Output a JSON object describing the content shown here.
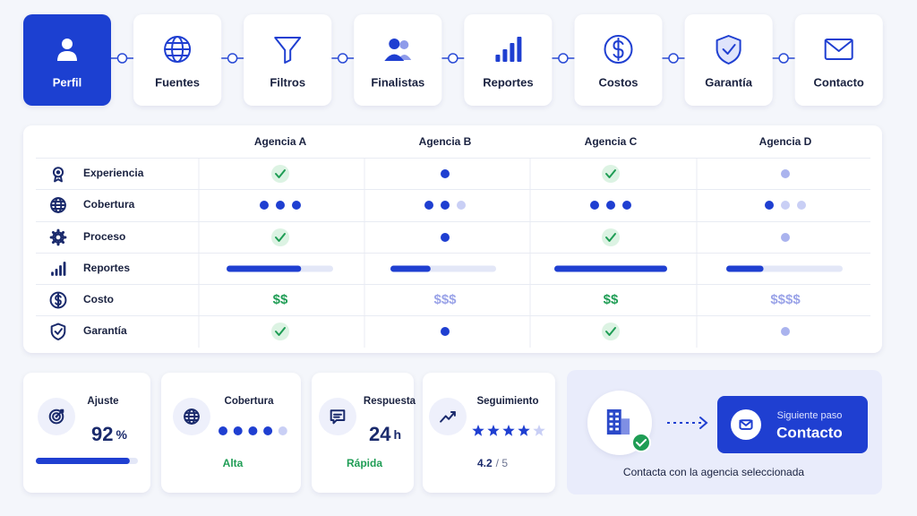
{
  "steps": {
    "active": 0,
    "items": [
      "Perfil",
      "Fuentes",
      "Filtros",
      "Finalistas",
      "Reportes",
      "Costos",
      "Garantía",
      "Contacto"
    ]
  },
  "table": {
    "columns": [
      "Agencia A",
      "Agencia B",
      "Agencia C",
      "Agencia D"
    ],
    "rows": [
      {
        "label": "Experiencia",
        "cells": [
          "check",
          "dot",
          "check",
          "dot-muted"
        ]
      },
      {
        "label": "Cobertura",
        "rating_max": 3,
        "cells": [
          3,
          2,
          3,
          1
        ]
      },
      {
        "label": "Proceso",
        "cells": [
          "check",
          "dot",
          "check",
          "dot-muted"
        ]
      },
      {
        "label": "Reportes",
        "bar_max": 100,
        "cells": [
          70,
          38,
          100,
          32
        ]
      },
      {
        "label": "Costo",
        "cells": [
          "$$",
          "$$$",
          "$$",
          "$$$$"
        ],
        "cell_colors": [
          "#1f9d55",
          "#9aa3e8",
          "#1f9d55",
          "#9aa3e8"
        ]
      },
      {
        "label": "Garantía",
        "cells": [
          "check",
          "dot",
          "check",
          "dot-muted"
        ]
      }
    ]
  },
  "cards": [
    {
      "title": "Ajuste",
      "value": 92,
      "unit": "%",
      "max": 100
    },
    {
      "title": "Cobertura",
      "rating": 4,
      "rating_max": 5,
      "label": "Alta"
    },
    {
      "title": "Respuesta",
      "value": 24,
      "unit": "h",
      "label": "Rápida"
    },
    {
      "title": "Seguimiento",
      "rating": 4,
      "rating_max": 5,
      "score": 4.2,
      "score_suffix": "/ 5"
    }
  ],
  "contact": {
    "kicker": "Siguiente paso",
    "title": "Contacto",
    "caption": "Contacta con la agencia seleccionada"
  }
}
